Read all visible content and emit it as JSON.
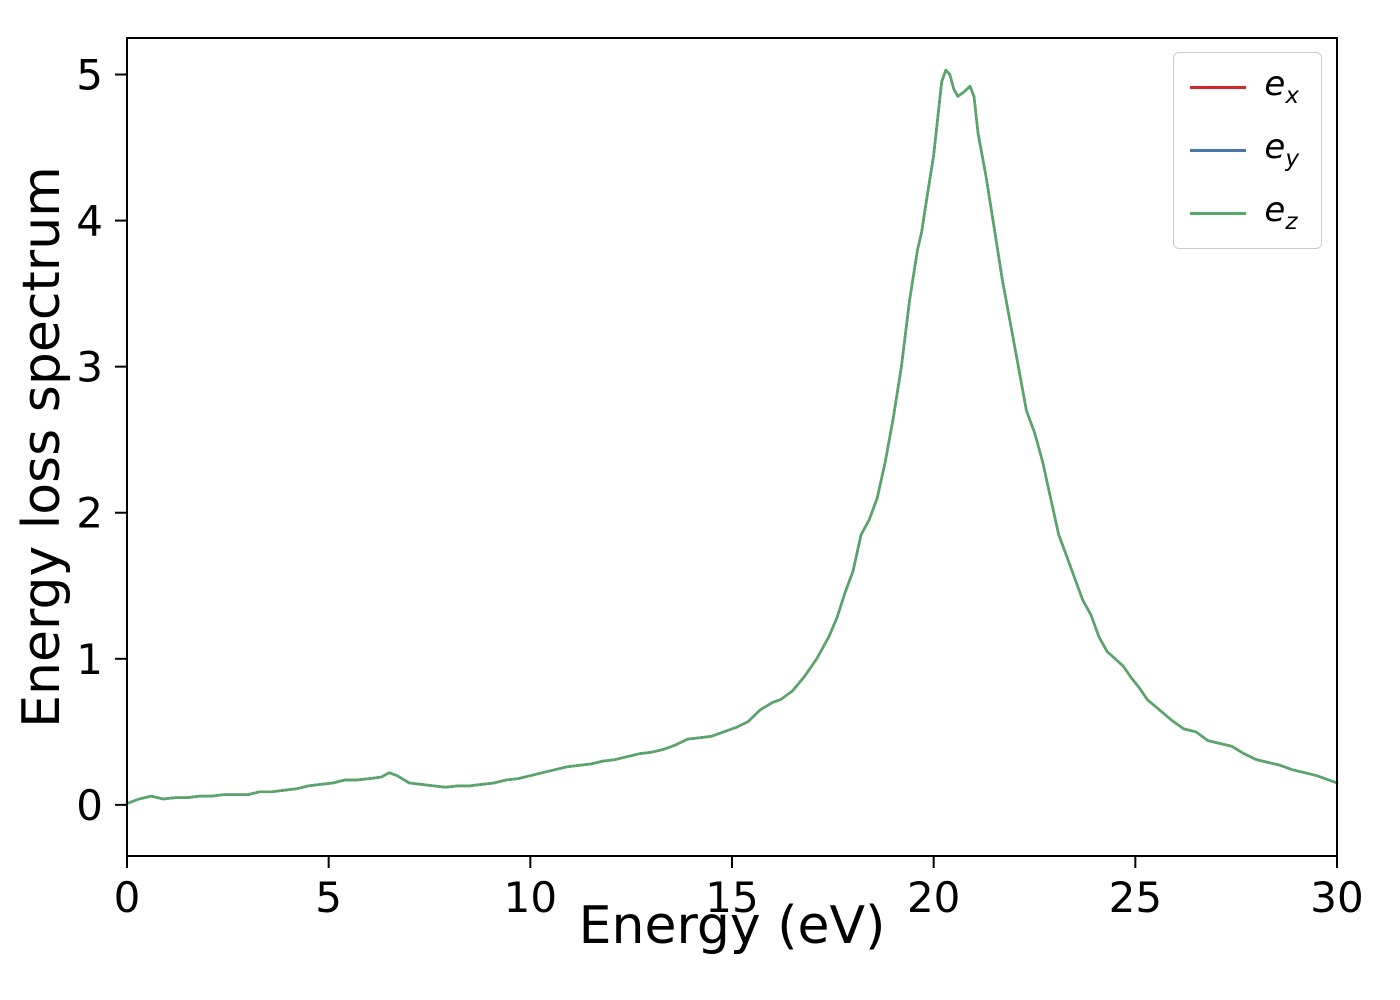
{
  "figure": {
    "xlabel": "Energy (eV)",
    "ylabel": "Energy loss spectrum"
  },
  "legend": {
    "items": [
      {
        "base": "e",
        "sub": "x",
        "color": "#d62728"
      },
      {
        "base": "e",
        "sub": "y",
        "color": "#4878a8"
      },
      {
        "base": "e",
        "sub": "z",
        "color": "#55a868"
      }
    ]
  },
  "chart_data": {
    "type": "line",
    "title": "",
    "xlabel": "Energy (eV)",
    "ylabel": "Energy loss spectrum",
    "xlim": [
      0,
      30
    ],
    "ylim": [
      -0.35,
      5.25
    ],
    "xticks": [
      0,
      5,
      10,
      15,
      20,
      25,
      30
    ],
    "yticks": [
      0,
      1,
      2,
      3,
      4,
      5
    ],
    "grid": false,
    "legend_position": "upper right",
    "note": "Three spectra e_x, e_y, e_z coincide exactly; green (e_z, drawn last) is visible on top.",
    "series": [
      {
        "name": "e_x",
        "color": "#d62728",
        "values": "shared"
      },
      {
        "name": "e_y",
        "color": "#4878a8",
        "values": "shared"
      },
      {
        "name": "e_z",
        "color": "#55a868",
        "values": "shared"
      }
    ],
    "points": [
      [
        0,
        0.01
      ],
      [
        0.3,
        0.04
      ],
      [
        0.6,
        0.06
      ],
      [
        0.9,
        0.04
      ],
      [
        1.2,
        0.05
      ],
      [
        1.5,
        0.05
      ],
      [
        1.8,
        0.06
      ],
      [
        2.1,
        0.06
      ],
      [
        2.4,
        0.07
      ],
      [
        2.7,
        0.07
      ],
      [
        3,
        0.07
      ],
      [
        3.3,
        0.09
      ],
      [
        3.6,
        0.09
      ],
      [
        3.9,
        0.1
      ],
      [
        4.2,
        0.11
      ],
      [
        4.5,
        0.13
      ],
      [
        4.8,
        0.14
      ],
      [
        5.1,
        0.15
      ],
      [
        5.4,
        0.17
      ],
      [
        5.7,
        0.17
      ],
      [
        6,
        0.18
      ],
      [
        6.3,
        0.19
      ],
      [
        6.5,
        0.22
      ],
      [
        6.7,
        0.2
      ],
      [
        7,
        0.15
      ],
      [
        7.3,
        0.14
      ],
      [
        7.6,
        0.13
      ],
      [
        7.9,
        0.12
      ],
      [
        8.2,
        0.13
      ],
      [
        8.5,
        0.13
      ],
      [
        8.8,
        0.14
      ],
      [
        9.1,
        0.15
      ],
      [
        9.4,
        0.17
      ],
      [
        9.7,
        0.18
      ],
      [
        10,
        0.2
      ],
      [
        10.3,
        0.22
      ],
      [
        10.6,
        0.24
      ],
      [
        10.9,
        0.26
      ],
      [
        11.2,
        0.27
      ],
      [
        11.5,
        0.28
      ],
      [
        11.8,
        0.3
      ],
      [
        12.1,
        0.31
      ],
      [
        12.4,
        0.33
      ],
      [
        12.7,
        0.35
      ],
      [
        13,
        0.36
      ],
      [
        13.3,
        0.38
      ],
      [
        13.6,
        0.41
      ],
      [
        13.9,
        0.45
      ],
      [
        14.2,
        0.46
      ],
      [
        14.5,
        0.47
      ],
      [
        14.8,
        0.5
      ],
      [
        15.1,
        0.53
      ],
      [
        15.4,
        0.57
      ],
      [
        15.7,
        0.65
      ],
      [
        16,
        0.7
      ],
      [
        16.2,
        0.72
      ],
      [
        16.5,
        0.78
      ],
      [
        16.8,
        0.88
      ],
      [
        17.1,
        1.0
      ],
      [
        17.4,
        1.15
      ],
      [
        17.6,
        1.28
      ],
      [
        17.8,
        1.45
      ],
      [
        18,
        1.6
      ],
      [
        18.2,
        1.85
      ],
      [
        18.4,
        1.95
      ],
      [
        18.6,
        2.1
      ],
      [
        18.8,
        2.35
      ],
      [
        19,
        2.65
      ],
      [
        19.2,
        3.0
      ],
      [
        19.4,
        3.45
      ],
      [
        19.6,
        3.8
      ],
      [
        19.7,
        3.92
      ],
      [
        19.8,
        4.1
      ],
      [
        20,
        4.45
      ],
      [
        20.1,
        4.7
      ],
      [
        20.2,
        4.95
      ],
      [
        20.3,
        5.03
      ],
      [
        20.4,
        5.0
      ],
      [
        20.5,
        4.9
      ],
      [
        20.6,
        4.85
      ],
      [
        20.75,
        4.88
      ],
      [
        20.9,
        4.92
      ],
      [
        21,
        4.85
      ],
      [
        21.1,
        4.6
      ],
      [
        21.3,
        4.3
      ],
      [
        21.5,
        3.95
      ],
      [
        21.7,
        3.6
      ],
      [
        21.9,
        3.3
      ],
      [
        22.1,
        3.0
      ],
      [
        22.3,
        2.7
      ],
      [
        22.5,
        2.55
      ],
      [
        22.7,
        2.35
      ],
      [
        22.9,
        2.1
      ],
      [
        23.1,
        1.85
      ],
      [
        23.3,
        1.7
      ],
      [
        23.5,
        1.55
      ],
      [
        23.7,
        1.4
      ],
      [
        23.9,
        1.3
      ],
      [
        24.1,
        1.15
      ],
      [
        24.3,
        1.05
      ],
      [
        24.5,
        1.0
      ],
      [
        24.7,
        0.95
      ],
      [
        24.9,
        0.87
      ],
      [
        25.1,
        0.8
      ],
      [
        25.3,
        0.72
      ],
      [
        25.6,
        0.65
      ],
      [
        25.9,
        0.58
      ],
      [
        26.2,
        0.52
      ],
      [
        26.5,
        0.5
      ],
      [
        26.8,
        0.44
      ],
      [
        27.1,
        0.42
      ],
      [
        27.4,
        0.4
      ],
      [
        27.7,
        0.35
      ],
      [
        28,
        0.31
      ],
      [
        28.3,
        0.29
      ],
      [
        28.6,
        0.27
      ],
      [
        28.9,
        0.24
      ],
      [
        29.2,
        0.22
      ],
      [
        29.5,
        0.2
      ],
      [
        29.8,
        0.17
      ],
      [
        30,
        0.15
      ]
    ]
  }
}
